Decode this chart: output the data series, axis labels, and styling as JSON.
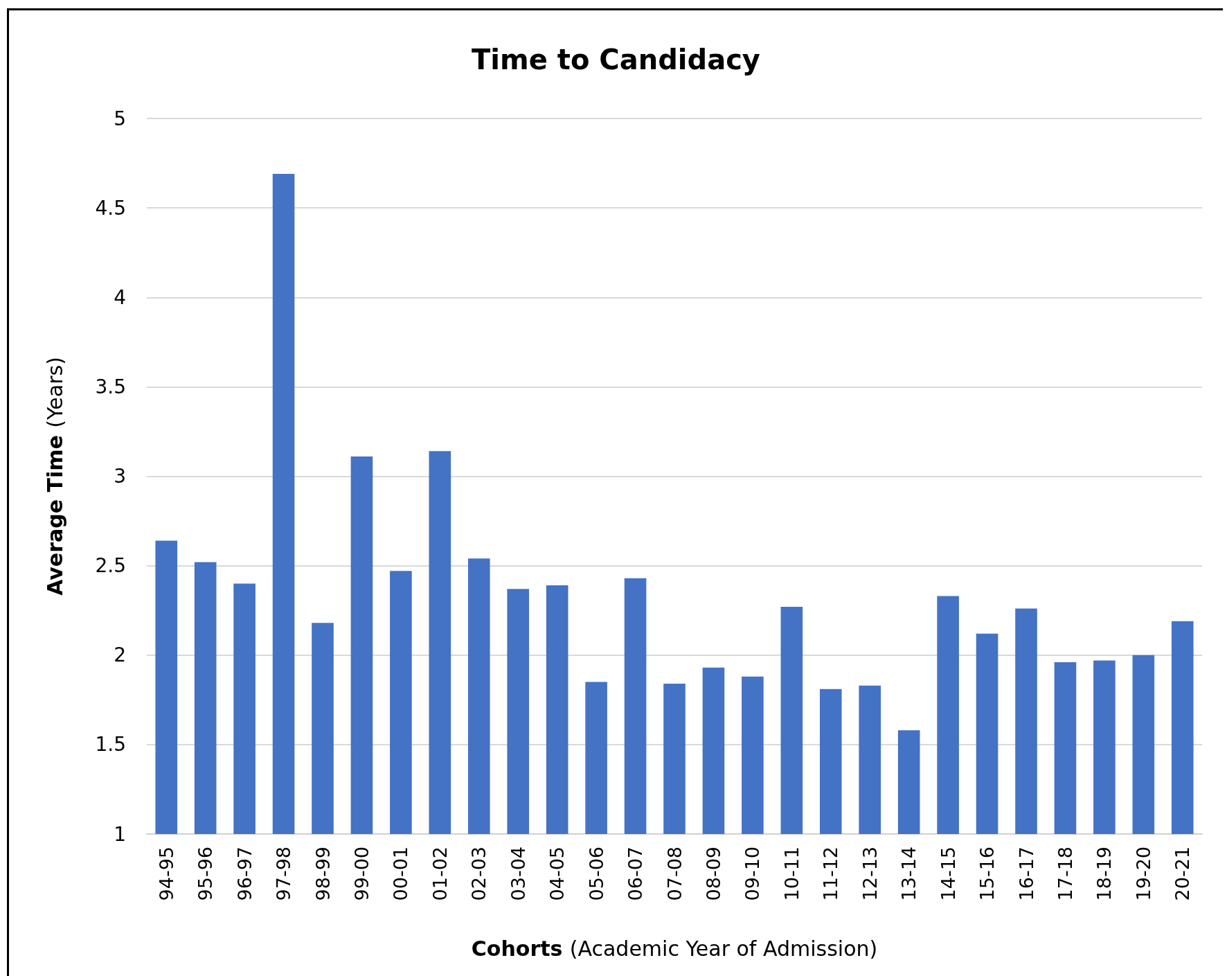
{
  "chart_data": {
    "type": "bar",
    "title": "Time to Candidacy",
    "xlabel": "Cohorts (Academic Year of Admission)",
    "ylabel": "Average Time (Years)",
    "categories": [
      "94-95",
      "95-96",
      "96-97",
      "97-98",
      "98-99",
      "99-00",
      "00-01",
      "01-02",
      "02-03",
      "03-04",
      "04-05",
      "05-06",
      "06-07",
      "07-08",
      "08-09",
      "09-10",
      "10-11",
      "11-12",
      "12-13",
      "13-14",
      "14-15",
      "15-16",
      "16-17",
      "17-18",
      "18-19",
      "19-20",
      "20-21"
    ],
    "values": [
      2.64,
      2.52,
      2.4,
      4.69,
      2.18,
      3.11,
      2.47,
      3.14,
      2.54,
      2.37,
      2.39,
      1.85,
      2.43,
      1.84,
      1.93,
      1.88,
      2.27,
      1.81,
      1.83,
      1.58,
      2.33,
      2.12,
      2.26,
      1.96,
      1.97,
      2.0,
      2.19
    ],
    "color": "#4472c4",
    "ylim": [
      1,
      5
    ],
    "yticks": [
      1,
      1.5,
      2,
      2.5,
      3,
      3.5,
      4,
      4.5,
      5
    ],
    "grid": "y"
  }
}
